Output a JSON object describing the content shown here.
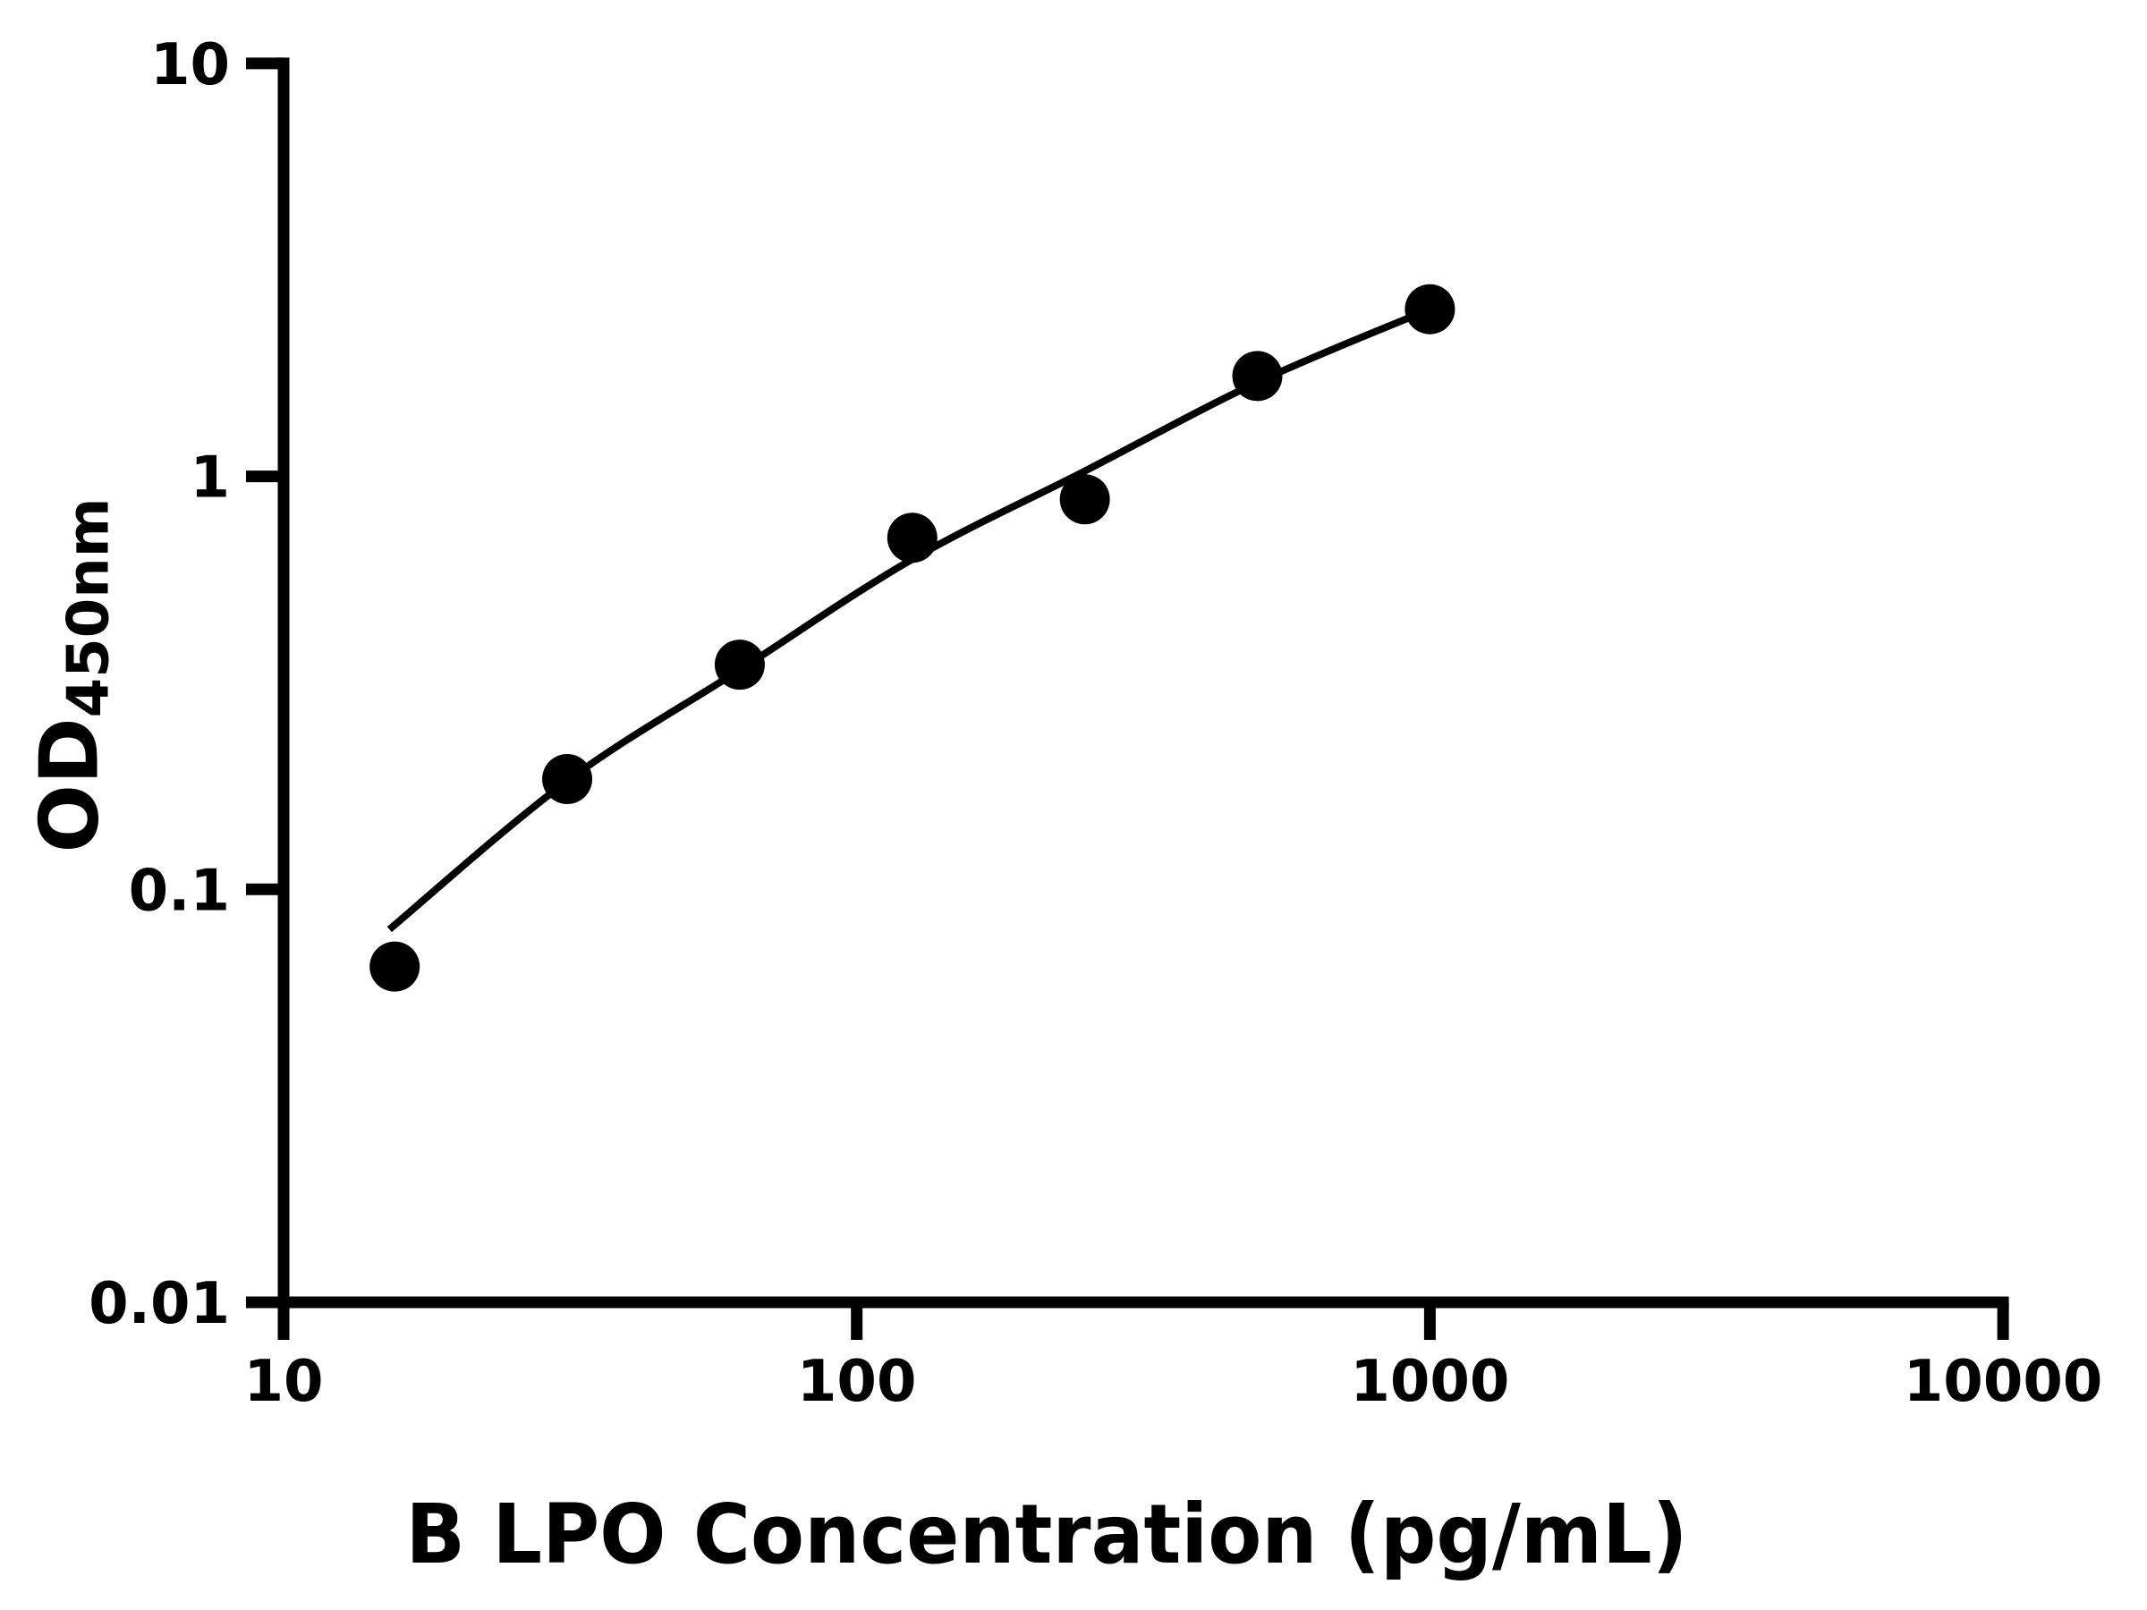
{
  "chart_data": {
    "type": "scatter",
    "title": "",
    "xlabel": "B LPO Concentration (pg/mL)",
    "ylabel": "OD450nm",
    "ylabel_main": "OD",
    "ylabel_sub": "450nm",
    "x_scale": "log",
    "y_scale": "log",
    "xlim": [
      10,
      10000
    ],
    "ylim": [
      0.01,
      10
    ],
    "x_ticks": [
      10,
      100,
      1000,
      10000
    ],
    "y_ticks": [
      10,
      1,
      0.1,
      0.01
    ],
    "x_tick_labels": [
      "10",
      "100",
      "1000",
      "10000"
    ],
    "y_tick_labels": [
      "10",
      "1",
      "0.1",
      "0.01"
    ],
    "grid": false,
    "legend": false,
    "background_color": "#ffffff",
    "axis_color": "#000000",
    "marker_color": "#000000",
    "line_color": "#000000",
    "series": [
      {
        "name": "standard points",
        "type": "scatter",
        "x": [
          15.625,
          31.25,
          62.5,
          125,
          250,
          500,
          1000
        ],
        "y": [
          0.065,
          0.185,
          0.35,
          0.71,
          0.88,
          1.75,
          2.54
        ]
      },
      {
        "name": "fitted curve",
        "type": "line",
        "x": [
          15.3,
          31.25,
          62.5,
          125,
          250,
          500,
          1000
        ],
        "y": [
          0.08,
          0.183,
          0.34,
          0.63,
          1.03,
          1.69,
          2.54
        ]
      }
    ]
  }
}
